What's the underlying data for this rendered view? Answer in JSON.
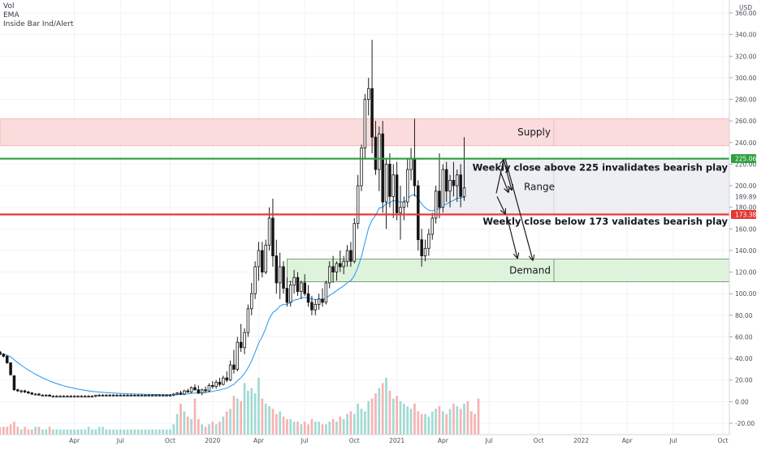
{
  "legend": {
    "vol": "Vol",
    "ema": "EMA",
    "inside_bar": "Inside Bar Ind/Alert"
  },
  "currency": "USD",
  "colors": {
    "up": "#26a69a",
    "down": "#ef5350",
    "ema": "#2196f3",
    "green_line": "#2e9e3e",
    "red_line": "#e53935",
    "supply_fill": "#fbdcdc",
    "demand_fill": "#dff2dc",
    "range_fill": "#eeeff2",
    "text": "#131722",
    "axis_text": "#4a4e59"
  },
  "chart_data": {
    "type": "candlestick",
    "title": "",
    "ylim": [
      -25,
      360
    ],
    "y_ticks": [
      "-20.00",
      "0.00",
      "20.00",
      "40.00",
      "60.00",
      "80.00",
      "100.00",
      "120.00",
      "140.00",
      "160.00",
      "180.00",
      "200.00",
      "220.00",
      "240.00",
      "260.00",
      "280.00",
      "300.00",
      "320.00",
      "340.00",
      "360.00"
    ],
    "x_ticks": [
      {
        "label": "Apr",
        "week": 13
      },
      {
        "label": "Jul",
        "week": 26
      },
      {
        "label": "Oct",
        "week": 40
      },
      {
        "label": "2020",
        "week": 52
      },
      {
        "label": "Apr",
        "week": 65
      },
      {
        "label": "Jul",
        "week": 78
      },
      {
        "label": "Oct",
        "week": 92
      },
      {
        "label": "2021",
        "week": 104
      },
      {
        "label": "Apr",
        "week": 117
      },
      {
        "label": "Jul",
        "week": 130
      },
      {
        "label": "Oct",
        "week": 144
      },
      {
        "label": "2022",
        "week": 156
      },
      {
        "label": "Apr",
        "week": 169
      },
      {
        "label": "Jul",
        "week": 182
      },
      {
        "label": "Oct",
        "week": 196
      }
    ],
    "x_start_week": -8,
    "x_end_week": 196,
    "price_labels": [
      {
        "value": 225.06,
        "text": "225.06",
        "color": "#2e9e3e"
      },
      {
        "value": 189.89,
        "text": "189.89",
        "color": "none"
      },
      {
        "value": 173.38,
        "text": "173.38",
        "color": "#e53935"
      }
    ],
    "levels": [
      {
        "name": "weekly-close-above",
        "value": 225.06,
        "color": "#2e9e3e"
      },
      {
        "name": "weekly-close-below",
        "value": 173.38,
        "color": "#e53935"
      }
    ],
    "zones": [
      {
        "name": "supply",
        "label": "Supply",
        "top": 262,
        "bottom": 237,
        "start_week": -8
      },
      {
        "name": "range",
        "label": "Range",
        "top": 225,
        "bottom": 173,
        "start_week": 117
      },
      {
        "name": "demand",
        "label": "Demand",
        "top": 132,
        "bottom": 111,
        "start_week": 73
      }
    ],
    "annotations": [
      {
        "text": "Weekly close above 225 invalidates bearish play",
        "value": 217
      },
      {
        "text": "Weekly close below 173 validates bearish play",
        "value": 167
      }
    ],
    "candles": [
      [
        46,
        47,
        43,
        44
      ],
      [
        44,
        45,
        41,
        42
      ],
      [
        42,
        43,
        35,
        36
      ],
      [
        36,
        36,
        24,
        25
      ],
      [
        24,
        24,
        10,
        11
      ],
      [
        11,
        12,
        9,
        10
      ],
      [
        10,
        11,
        8,
        10
      ],
      [
        10,
        11,
        8,
        9
      ],
      [
        9,
        10,
        7,
        8
      ],
      [
        8,
        9,
        6,
        7
      ],
      [
        7,
        8,
        6,
        7
      ],
      [
        7,
        8,
        6,
        6
      ],
      [
        6,
        7,
        5,
        6
      ],
      [
        6,
        7,
        5,
        6
      ],
      [
        6,
        7,
        5,
        5
      ],
      [
        5,
        6,
        4,
        5
      ],
      [
        5,
        6,
        4,
        5
      ],
      [
        5,
        6,
        4,
        5
      ],
      [
        5,
        6,
        4,
        5
      ],
      [
        5,
        6,
        5,
        5
      ],
      [
        5,
        6,
        4,
        5
      ],
      [
        5,
        6,
        4,
        5
      ],
      [
        5,
        6,
        4,
        5
      ],
      [
        5,
        6,
        4,
        5
      ],
      [
        5,
        6,
        4,
        5
      ],
      [
        5,
        6,
        4,
        5
      ],
      [
        5,
        6,
        4,
        5
      ],
      [
        5,
        6,
        4,
        6
      ],
      [
        6,
        7,
        5,
        6
      ],
      [
        6,
        7,
        5,
        6
      ],
      [
        6,
        7,
        5,
        6
      ],
      [
        6,
        7,
        5,
        6
      ],
      [
        6,
        7,
        5,
        6
      ],
      [
        6,
        7,
        5,
        6
      ],
      [
        6,
        7,
        5,
        6
      ],
      [
        6,
        7,
        5,
        6
      ],
      [
        6,
        7,
        5,
        6
      ],
      [
        6,
        7,
        5,
        6
      ],
      [
        6,
        7,
        5,
        6
      ],
      [
        6,
        7,
        5,
        6
      ],
      [
        6,
        7,
        5,
        6
      ],
      [
        6,
        7,
        5,
        6
      ],
      [
        6,
        7,
        5,
        6
      ],
      [
        6,
        7,
        5,
        6
      ],
      [
        6,
        7,
        5,
        6
      ],
      [
        6,
        7,
        5,
        6
      ],
      [
        6,
        7,
        5,
        6
      ],
      [
        6,
        7,
        5,
        6
      ],
      [
        6,
        7,
        5,
        6
      ],
      [
        6,
        8,
        5,
        7
      ],
      [
        7,
        9,
        6,
        8
      ],
      [
        8,
        10,
        6,
        7
      ],
      [
        7,
        11,
        6,
        10
      ],
      [
        10,
        12,
        8,
        9
      ],
      [
        9,
        14,
        8,
        13
      ],
      [
        13,
        16,
        10,
        11
      ],
      [
        11,
        15,
        7,
        8
      ],
      [
        8,
        12,
        6,
        11
      ],
      [
        11,
        14,
        8,
        10
      ],
      [
        10,
        17,
        9,
        15
      ],
      [
        15,
        19,
        12,
        14
      ],
      [
        14,
        20,
        12,
        18
      ],
      [
        18,
        22,
        14,
        16
      ],
      [
        16,
        24,
        15,
        22
      ],
      [
        22,
        28,
        18,
        20
      ],
      [
        20,
        38,
        19,
        34
      ],
      [
        34,
        48,
        26,
        30
      ],
      [
        30,
        60,
        28,
        55
      ],
      [
        55,
        72,
        46,
        50
      ],
      [
        50,
        68,
        44,
        64
      ],
      [
        64,
        90,
        60,
        86
      ],
      [
        86,
        110,
        80,
        100
      ],
      [
        100,
        130,
        95,
        125
      ],
      [
        125,
        148,
        112,
        140
      ],
      [
        140,
        148,
        115,
        120
      ],
      [
        120,
        150,
        118,
        145
      ],
      [
        145,
        180,
        140,
        170
      ],
      [
        170,
        188,
        125,
        135
      ],
      [
        135,
        150,
        100,
        110
      ],
      [
        110,
        138,
        95,
        125
      ],
      [
        125,
        130,
        100,
        105
      ],
      [
        105,
        115,
        88,
        92
      ],
      [
        92,
        112,
        88,
        108
      ],
      [
        108,
        122,
        100,
        115
      ],
      [
        115,
        120,
        98,
        102
      ],
      [
        102,
        112,
        95,
        110
      ],
      [
        110,
        118,
        98,
        100
      ],
      [
        100,
        108,
        88,
        92
      ],
      [
        92,
        98,
        80,
        85
      ],
      [
        85,
        95,
        80,
        90
      ],
      [
        90,
        100,
        85,
        95
      ],
      [
        95,
        105,
        88,
        92
      ],
      [
        92,
        112,
        90,
        110
      ],
      [
        110,
        130,
        105,
        125
      ],
      [
        125,
        135,
        110,
        120
      ],
      [
        120,
        130,
        112,
        128
      ],
      [
        128,
        140,
        120,
        125
      ],
      [
        125,
        135,
        118,
        130
      ],
      [
        130,
        145,
        125,
        140
      ],
      [
        140,
        148,
        125,
        130
      ],
      [
        130,
        170,
        128,
        165
      ],
      [
        165,
        210,
        160,
        200
      ],
      [
        200,
        238,
        195,
        235
      ],
      [
        235,
        285,
        225,
        280
      ],
      [
        280,
        300,
        265,
        290
      ],
      [
        290,
        335,
        230,
        245
      ],
      [
        245,
        260,
        210,
        215
      ],
      [
        215,
        255,
        195,
        248
      ],
      [
        248,
        260,
        175,
        185
      ],
      [
        185,
        225,
        160,
        220
      ],
      [
        220,
        230,
        180,
        190
      ],
      [
        190,
        220,
        170,
        210
      ],
      [
        210,
        222,
        168,
        175
      ],
      [
        175,
        200,
        150,
        180
      ],
      [
        180,
        190,
        168,
        185
      ],
      [
        185,
        225,
        180,
        215
      ],
      [
        215,
        235,
        205,
        225
      ],
      [
        225,
        262,
        190,
        200
      ],
      [
        200,
        205,
        140,
        150
      ],
      [
        150,
        160,
        125,
        135
      ],
      [
        135,
        150,
        130,
        142
      ],
      [
        142,
        160,
        135,
        155
      ],
      [
        155,
        175,
        150,
        170
      ],
      [
        170,
        200,
        165,
        195
      ],
      [
        195,
        230,
        170,
        180
      ],
      [
        180,
        220,
        175,
        215
      ],
      [
        215,
        222,
        185,
        195
      ],
      [
        195,
        210,
        180,
        205
      ],
      [
        205,
        222,
        190,
        200
      ],
      [
        200,
        215,
        185,
        210
      ],
      [
        210,
        220,
        180,
        190
      ],
      [
        190,
        245,
        186,
        198
      ]
    ],
    "volumes": [
      3,
      3,
      3,
      4,
      5,
      3,
      2,
      3,
      2,
      2,
      3,
      3,
      2,
      2,
      3,
      2,
      2,
      2,
      2,
      2,
      2,
      2,
      2,
      2,
      2,
      3,
      2,
      2,
      3,
      3,
      2,
      2,
      2,
      2,
      2,
      2,
      2,
      2,
      2,
      2,
      2,
      2,
      2,
      2,
      2,
      2,
      2,
      2,
      2,
      4,
      8,
      12,
      9,
      7,
      6,
      14,
      6,
      4,
      3,
      4,
      5,
      4,
      5,
      7,
      9,
      10,
      15,
      14,
      13,
      20,
      17,
      18,
      16,
      22,
      14,
      12,
      11,
      10,
      8,
      9,
      7,
      6,
      6,
      5,
      5,
      4,
      5,
      4,
      6,
      5,
      5,
      4,
      4,
      5,
      6,
      5,
      7,
      6,
      8,
      9,
      8,
      12,
      10,
      9,
      13,
      14,
      16,
      18,
      20,
      22,
      17,
      14,
      15,
      13,
      12,
      11,
      10,
      12,
      9,
      8,
      8,
      7,
      9,
      10,
      11,
      9,
      8,
      10,
      12,
      11,
      10,
      12,
      13,
      9,
      8,
      14
    ]
  }
}
